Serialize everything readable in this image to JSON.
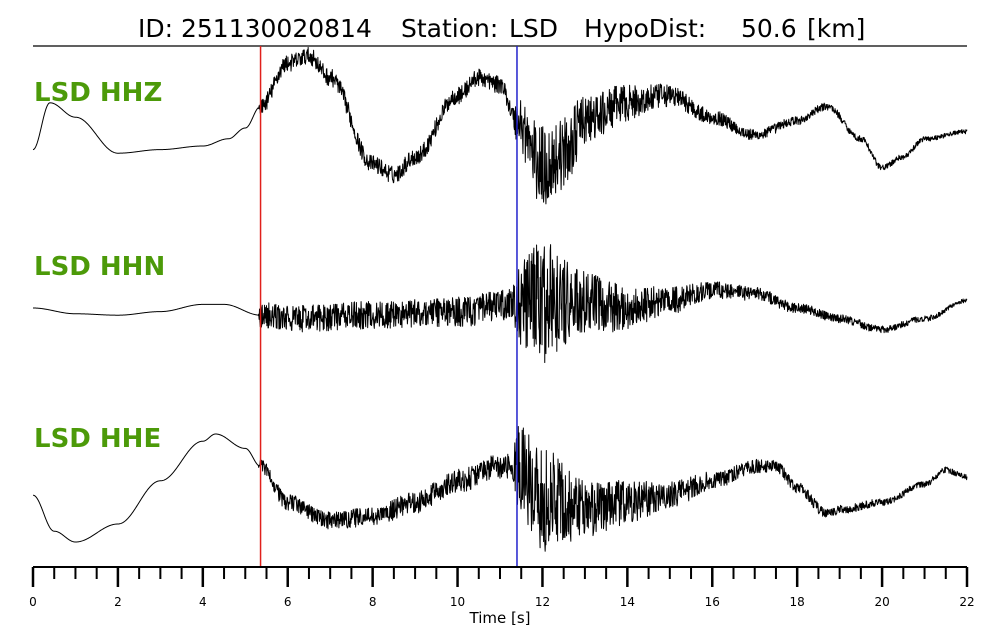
{
  "title": {
    "id_label": "ID:",
    "id_value": "251130020814",
    "station_label": "Station:",
    "station_value": "LSD",
    "dist_label": "HypoDist:",
    "dist_value": "50.6",
    "dist_unit": "[km]"
  },
  "colors": {
    "trace": "#000000",
    "channel_label": "#4c9a09",
    "p_pick": "#e0201b",
    "s_pick": "#2222cc"
  },
  "chart_data": {
    "type": "line",
    "xlabel": "Time [s]",
    "xlim": [
      0,
      22
    ],
    "x_ticks": [
      0,
      2,
      4,
      6,
      8,
      10,
      12,
      14,
      16,
      18,
      20,
      22
    ],
    "x_minor_step": 0.5,
    "grid": false,
    "picks": [
      {
        "phase": "P",
        "time": 5.36,
        "color": "#e0201b"
      },
      {
        "phase": "S",
        "time": 11.4,
        "color": "#2222cc"
      }
    ],
    "series": [
      {
        "name": "LSD HHZ",
        "low_freq": {
          "x": [
            0,
            0.4,
            1,
            2,
            3,
            4,
            4.6,
            5.0,
            5.36,
            6,
            6.5,
            7,
            8,
            8.5,
            9,
            10,
            10.5,
            11,
            11.4,
            12,
            12.5,
            13,
            14,
            15,
            16,
            17,
            18,
            18.7,
            19.5,
            20,
            20.5,
            21,
            22
          ],
          "y": [
            -0.3,
            0.35,
            0.15,
            -0.35,
            -0.3,
            -0.25,
            -0.15,
            0.0,
            0.3,
            0.9,
            1.0,
            0.7,
            -0.5,
            -0.65,
            -0.4,
            0.45,
            0.7,
            0.6,
            0.1,
            -0.55,
            -0.35,
            0.1,
            0.35,
            0.45,
            0.15,
            -0.1,
            0.1,
            0.3,
            -0.15,
            -0.55,
            -0.4,
            -0.15,
            -0.05
          ]
        },
        "noise": {
          "x": [
            0,
            5.3,
            5.36,
            9,
            11.3,
            11.4,
            12,
            12.5,
            13,
            14,
            15,
            16,
            18,
            20,
            22
          ],
          "amp": [
            0.0,
            0.0,
            0.12,
            0.12,
            0.12,
            0.35,
            0.6,
            0.5,
            0.35,
            0.25,
            0.15,
            0.1,
            0.06,
            0.04,
            0.03
          ]
        }
      },
      {
        "name": "LSD HHN",
        "low_freq": {
          "x": [
            0,
            1,
            2,
            3,
            4,
            4.5,
            5.36,
            6,
            8,
            10,
            11.4,
            12,
            13,
            14,
            15,
            16,
            17,
            18,
            19,
            20,
            21,
            22
          ],
          "y": [
            0.0,
            -0.08,
            -0.1,
            -0.05,
            0.05,
            0.05,
            -0.1,
            -0.15,
            -0.1,
            -0.05,
            0.05,
            0.1,
            0.05,
            0.0,
            0.1,
            0.25,
            0.2,
            0.0,
            -0.15,
            -0.3,
            -0.15,
            0.1
          ]
        },
        "noise": {
          "x": [
            0,
            5.3,
            5.36,
            9,
            11.3,
            11.4,
            12,
            12.5,
            13,
            14,
            15,
            16,
            18,
            20,
            22
          ],
          "amp": [
            0.0,
            0.0,
            0.18,
            0.2,
            0.22,
            0.5,
            0.9,
            0.6,
            0.45,
            0.3,
            0.2,
            0.12,
            0.07,
            0.05,
            0.03
          ]
        }
      },
      {
        "name": "LSD HHE",
        "low_freq": {
          "x": [
            0,
            0.5,
            1,
            2,
            3,
            4,
            4.3,
            5,
            5.36,
            6,
            7,
            8,
            9,
            10,
            11,
            11.4,
            12,
            13,
            14,
            15,
            16,
            17,
            17.5,
            18,
            18.7,
            19,
            20,
            21,
            21.5,
            22
          ],
          "y": [
            -0.1,
            -0.6,
            -0.75,
            -0.5,
            0.1,
            0.65,
            0.75,
            0.55,
            0.3,
            -0.2,
            -0.45,
            -0.4,
            -0.2,
            0.1,
            0.3,
            0.3,
            -0.15,
            -0.3,
            -0.2,
            -0.1,
            0.1,
            0.3,
            0.3,
            0.0,
            -0.35,
            -0.3,
            -0.2,
            0.05,
            0.25,
            0.15
          ]
        },
        "noise": {
          "x": [
            0,
            5.3,
            5.36,
            9,
            11.3,
            11.4,
            12,
            12.5,
            13,
            14,
            15,
            16,
            18,
            20,
            22
          ],
          "amp": [
            0.0,
            0.0,
            0.1,
            0.15,
            0.18,
            0.55,
            0.8,
            0.55,
            0.4,
            0.3,
            0.2,
            0.12,
            0.08,
            0.05,
            0.04
          ]
        }
      }
    ]
  }
}
